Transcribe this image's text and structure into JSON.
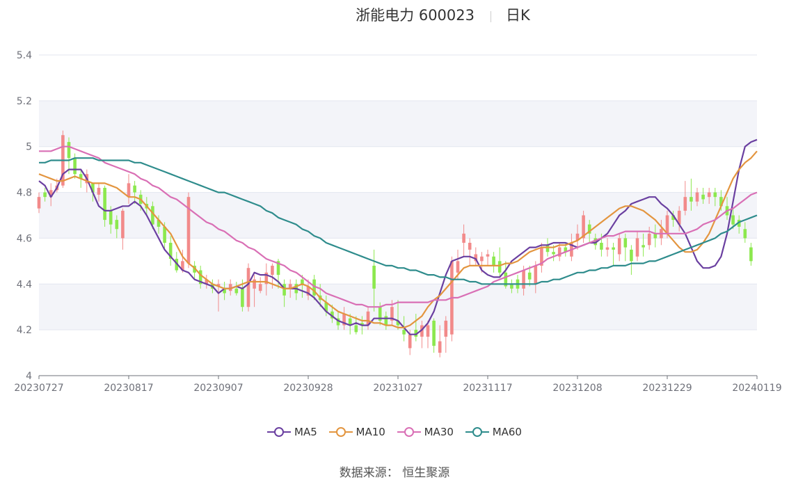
{
  "title": {
    "name": "浙能电力 600023",
    "period": "日K"
  },
  "source_text": "数据来源：  恒生聚源",
  "colors": {
    "up": "#f28a8a",
    "down": "#8ce84e",
    "ma5": "#6a3fa0",
    "ma10": "#e3953f",
    "ma30": "#d96fb5",
    "ma60": "#2e8c8c",
    "band": "#f3f4f9",
    "grid": "#e3e6ef",
    "axis": "#6e7079"
  },
  "chart_data": {
    "type": "candlestick",
    "title": "浙能电力 600023",
    "period": "日K",
    "ylim": [
      4,
      5.4
    ],
    "yticks": [
      4,
      4.2,
      4.4,
      4.6,
      4.8,
      5,
      5.2,
      5.4
    ],
    "ytick_labels": [
      "4",
      "4.2",
      "4.4",
      "4.6",
      "4.8",
      "5",
      "5.2",
      "5.4"
    ],
    "xtick_labels": [
      "20230727",
      "20230817",
      "20230907",
      "20230928",
      "20231027",
      "20231117",
      "20231208",
      "20231229",
      "20240119"
    ],
    "num_bars": 121,
    "xtick_indices": [
      0,
      15,
      30,
      45,
      60,
      75,
      90,
      105,
      120
    ],
    "legend": [
      {
        "name": "MA5",
        "color": "#6a3fa0"
      },
      {
        "name": "MA10",
        "color": "#e3953f"
      },
      {
        "name": "MA30",
        "color": "#d96fb5"
      },
      {
        "name": "MA60",
        "color": "#2e8c8c"
      }
    ],
    "candles": [
      [
        4.73,
        4.78,
        4.71,
        4.8
      ],
      [
        4.8,
        4.78,
        4.76,
        4.82
      ],
      [
        4.78,
        4.81,
        4.74,
        4.84
      ],
      [
        4.81,
        4.83,
        4.8,
        4.86
      ],
      [
        4.83,
        5.05,
        4.82,
        5.07
      ],
      [
        5.02,
        4.95,
        4.88,
        5.04
      ],
      [
        4.95,
        4.88,
        4.86,
        4.97
      ],
      [
        4.88,
        4.86,
        4.82,
        4.9
      ],
      [
        4.84,
        4.88,
        4.8,
        4.9
      ],
      [
        4.84,
        4.8,
        4.76,
        4.84
      ],
      [
        4.79,
        4.82,
        4.76,
        4.84
      ],
      [
        4.82,
        4.68,
        4.65,
        4.83
      ],
      [
        4.72,
        4.66,
        4.62,
        4.74
      ],
      [
        4.68,
        4.64,
        4.6,
        4.7
      ],
      [
        4.6,
        4.72,
        4.55,
        4.73
      ],
      [
        4.78,
        4.84,
        4.75,
        4.88
      ],
      [
        4.83,
        4.8,
        4.75,
        4.85
      ],
      [
        4.79,
        4.75,
        4.72,
        4.81
      ],
      [
        4.75,
        4.73,
        4.7,
        4.78
      ],
      [
        4.74,
        4.66,
        4.64,
        4.76
      ],
      [
        4.68,
        4.65,
        4.62,
        4.7
      ],
      [
        4.65,
        4.58,
        4.55,
        4.67
      ],
      [
        4.58,
        4.51,
        4.48,
        4.61
      ],
      [
        4.51,
        4.46,
        4.45,
        4.54
      ],
      [
        4.46,
        4.5,
        4.45,
        4.55
      ],
      [
        4.49,
        4.78,
        4.47,
        4.8
      ],
      [
        4.48,
        4.45,
        4.42,
        4.5
      ],
      [
        4.46,
        4.4,
        4.38,
        4.48
      ],
      [
        4.4,
        4.42,
        4.38,
        4.44
      ],
      [
        4.4,
        4.38,
        4.36,
        4.42
      ],
      [
        4.39,
        4.4,
        4.28,
        4.42
      ],
      [
        4.38,
        4.36,
        4.33,
        4.41
      ],
      [
        4.37,
        4.4,
        4.35,
        4.42
      ],
      [
        4.38,
        4.36,
        4.35,
        4.41
      ],
      [
        4.38,
        4.3,
        4.28,
        4.42
      ],
      [
        4.3,
        4.47,
        4.28,
        4.49
      ],
      [
        4.38,
        4.42,
        4.3,
        4.44
      ],
      [
        4.37,
        4.4,
        4.36,
        4.43
      ],
      [
        4.4,
        4.45,
        4.35,
        4.49
      ],
      [
        4.44,
        4.48,
        4.38,
        4.49
      ],
      [
        4.5,
        4.44,
        4.38,
        4.51
      ],
      [
        4.4,
        4.35,
        4.3,
        4.42
      ],
      [
        4.38,
        4.4,
        4.34,
        4.42
      ],
      [
        4.4,
        4.36,
        4.33,
        4.42
      ],
      [
        4.42,
        4.4,
        4.34,
        4.44
      ],
      [
        4.35,
        4.39,
        4.33,
        4.42
      ],
      [
        4.42,
        4.35,
        4.33,
        4.44
      ],
      [
        4.35,
        4.33,
        4.3,
        4.4
      ],
      [
        4.32,
        4.28,
        4.26,
        4.35
      ],
      [
        4.28,
        4.25,
        4.23,
        4.31
      ],
      [
        4.25,
        4.22,
        4.2,
        4.28
      ],
      [
        4.22,
        4.27,
        4.2,
        4.3
      ],
      [
        4.25,
        4.22,
        4.18,
        4.27
      ],
      [
        4.22,
        4.19,
        4.18,
        4.26
      ],
      [
        4.23,
        4.22,
        4.18,
        4.26
      ],
      [
        4.22,
        4.28,
        4.2,
        4.3
      ],
      [
        4.48,
        4.38,
        4.28,
        4.55
      ],
      [
        4.3,
        4.24,
        4.22,
        4.32
      ],
      [
        4.26,
        4.22,
        4.2,
        4.28
      ],
      [
        4.24,
        4.3,
        4.22,
        4.33
      ],
      [
        4.24,
        4.22,
        4.2,
        4.33
      ],
      [
        4.2,
        4.18,
        4.15,
        4.26
      ],
      [
        4.12,
        4.18,
        4.09,
        4.2
      ],
      [
        4.2,
        4.17,
        4.15,
        4.27
      ],
      [
        4.17,
        4.22,
        4.12,
        4.24
      ],
      [
        4.17,
        4.22,
        4.12,
        4.24
      ],
      [
        4.24,
        4.13,
        4.1,
        4.25
      ],
      [
        4.1,
        4.15,
        4.08,
        4.22
      ],
      [
        4.17,
        4.24,
        4.1,
        4.26
      ],
      [
        4.18,
        4.5,
        4.15,
        4.52
      ],
      [
        4.45,
        4.5,
        4.42,
        4.55
      ],
      [
        4.58,
        4.62,
        4.52,
        4.66
      ],
      [
        4.55,
        4.58,
        4.48,
        4.6
      ],
      [
        4.5,
        4.53,
        4.48,
        4.56
      ],
      [
        4.5,
        4.52,
        4.45,
        4.54
      ],
      [
        4.52,
        4.53,
        4.48,
        4.55
      ],
      [
        4.52,
        4.48,
        4.45,
        4.54
      ],
      [
        4.5,
        4.45,
        4.43,
        4.56
      ],
      [
        4.45,
        4.39,
        4.38,
        4.5
      ],
      [
        4.4,
        4.38,
        4.36,
        4.42
      ],
      [
        4.42,
        4.38,
        4.36,
        4.44
      ],
      [
        4.38,
        4.46,
        4.35,
        4.48
      ],
      [
        4.45,
        4.42,
        4.39,
        4.48
      ],
      [
        4.4,
        4.48,
        4.36,
        4.5
      ],
      [
        4.48,
        4.56,
        4.45,
        4.58
      ],
      [
        4.57,
        4.54,
        4.52,
        4.6
      ],
      [
        4.54,
        4.53,
        4.5,
        4.57
      ],
      [
        4.52,
        4.56,
        4.5,
        4.58
      ],
      [
        4.56,
        4.54,
        4.52,
        4.58
      ],
      [
        4.52,
        4.58,
        4.5,
        4.62
      ],
      [
        4.59,
        4.62,
        4.55,
        4.66
      ],
      [
        4.6,
        4.7,
        4.58,
        4.72
      ],
      [
        4.66,
        4.62,
        4.58,
        4.68
      ],
      [
        4.6,
        4.57,
        4.55,
        4.62
      ],
      [
        4.58,
        4.55,
        4.52,
        4.62
      ],
      [
        4.55,
        4.56,
        4.52,
        4.6
      ],
      [
        4.56,
        4.55,
        4.48,
        4.58
      ],
      [
        4.53,
        4.6,
        4.5,
        4.62
      ],
      [
        4.6,
        4.56,
        4.5,
        4.62
      ],
      [
        4.55,
        4.5,
        4.44,
        4.57
      ],
      [
        4.52,
        4.6,
        4.5,
        4.63
      ],
      [
        4.57,
        4.56,
        4.52,
        4.62
      ],
      [
        4.57,
        4.62,
        4.55,
        4.65
      ],
      [
        4.62,
        4.6,
        4.56,
        4.66
      ],
      [
        4.6,
        4.64,
        4.57,
        4.68
      ],
      [
        4.62,
        4.7,
        4.6,
        4.72
      ],
      [
        4.7,
        4.68,
        4.65,
        4.72
      ],
      [
        4.66,
        4.72,
        4.63,
        4.74
      ],
      [
        4.72,
        4.78,
        4.7,
        4.85
      ],
      [
        4.78,
        4.76,
        4.72,
        4.86
      ],
      [
        4.76,
        4.8,
        4.74,
        4.82
      ],
      [
        4.79,
        4.77,
        4.75,
        4.82
      ],
      [
        4.78,
        4.8,
        4.75,
        4.82
      ],
      [
        4.8,
        4.78,
        4.74,
        4.82
      ],
      [
        4.78,
        4.74,
        4.72,
        4.81
      ],
      [
        4.74,
        4.7,
        4.68,
        4.78
      ],
      [
        4.7,
        4.66,
        4.64,
        4.73
      ],
      [
        4.68,
        4.65,
        4.62,
        4.7
      ],
      [
        4.64,
        4.6,
        4.58,
        4.67
      ],
      [
        4.56,
        4.5,
        4.48,
        4.58
      ]
    ],
    "ma5": [
      4.85,
      4.83,
      4.78,
      4.82,
      4.88,
      4.9,
      4.9,
      4.9,
      4.86,
      4.8,
      4.74,
      4.72,
      4.72,
      4.73,
      4.74,
      4.74,
      4.76,
      4.74,
      4.7,
      4.65,
      4.6,
      4.55,
      4.52,
      4.49,
      4.46,
      4.45,
      4.42,
      4.41,
      4.4,
      4.39,
      4.36,
      4.38,
      4.38,
      4.39,
      4.38,
      4.4,
      4.45,
      4.44,
      4.44,
      4.43,
      4.41,
      4.38,
      4.38,
      4.38,
      4.37,
      4.36,
      4.34,
      4.31,
      4.28,
      4.26,
      4.24,
      4.23,
      4.22,
      4.23,
      4.22,
      4.22,
      4.25,
      4.25,
      4.25,
      4.25,
      4.24,
      4.21,
      4.18,
      4.18,
      4.2,
      4.23,
      4.28,
      4.36,
      4.44,
      4.5,
      4.51,
      4.52,
      4.52,
      4.51,
      4.46,
      4.44,
      4.43,
      4.43,
      4.46,
      4.5,
      4.52,
      4.54,
      4.56,
      4.56,
      4.57,
      4.57,
      4.58,
      4.58,
      4.58,
      4.57,
      4.56,
      4.57,
      4.58,
      4.58,
      4.6,
      4.62,
      4.66,
      4.7,
      4.72,
      4.75,
      4.76,
      4.77,
      4.78,
      4.78,
      4.75,
      4.73,
      4.7,
      4.66,
      4.62,
      4.56,
      4.5,
      4.47,
      4.47,
      4.48,
      4.52,
      4.62,
      4.76,
      4.9,
      5.0,
      5.02,
      5.03
    ],
    "ma10": [
      4.88,
      4.87,
      4.86,
      4.85,
      4.85,
      4.86,
      4.87,
      4.86,
      4.85,
      4.84,
      4.84,
      4.84,
      4.83,
      4.82,
      4.8,
      4.78,
      4.78,
      4.77,
      4.74,
      4.71,
      4.68,
      4.65,
      4.62,
      4.57,
      4.52,
      4.49,
      4.47,
      4.44,
      4.42,
      4.4,
      4.39,
      4.38,
      4.38,
      4.39,
      4.4,
      4.41,
      4.41,
      4.41,
      4.41,
      4.4,
      4.39,
      4.38,
      4.38,
      4.39,
      4.4,
      4.39,
      4.37,
      4.34,
      4.32,
      4.3,
      4.28,
      4.27,
      4.26,
      4.25,
      4.24,
      4.24,
      4.23,
      4.23,
      4.22,
      4.22,
      4.21,
      4.21,
      4.22,
      4.24,
      4.26,
      4.3,
      4.33,
      4.35,
      4.38,
      4.41,
      4.44,
      4.47,
      4.48,
      4.48,
      4.48,
      4.48,
      4.48,
      4.48,
      4.49,
      4.49,
      4.5,
      4.52,
      4.54,
      4.55,
      4.56,
      4.56,
      4.56,
      4.57,
      4.57,
      4.58,
      4.59,
      4.61,
      4.63,
      4.65,
      4.67,
      4.69,
      4.71,
      4.73,
      4.74,
      4.74,
      4.73,
      4.72,
      4.7,
      4.68,
      4.65,
      4.62,
      4.59,
      4.56,
      4.54,
      4.54,
      4.55,
      4.58,
      4.62,
      4.68,
      4.74,
      4.8,
      4.86,
      4.9,
      4.93,
      4.95,
      4.98
    ],
    "ma30": [
      4.98,
      4.98,
      4.98,
      4.99,
      5.0,
      5.0,
      4.99,
      4.98,
      4.97,
      4.96,
      4.95,
      4.93,
      4.92,
      4.91,
      4.9,
      4.89,
      4.88,
      4.86,
      4.85,
      4.83,
      4.82,
      4.8,
      4.78,
      4.77,
      4.75,
      4.73,
      4.71,
      4.69,
      4.67,
      4.66,
      4.64,
      4.63,
      4.61,
      4.59,
      4.58,
      4.56,
      4.55,
      4.53,
      4.51,
      4.5,
      4.49,
      4.48,
      4.46,
      4.45,
      4.43,
      4.41,
      4.39,
      4.38,
      4.36,
      4.35,
      4.34,
      4.33,
      4.32,
      4.31,
      4.31,
      4.3,
      4.3,
      4.3,
      4.31,
      4.31,
      4.32,
      4.32,
      4.32,
      4.32,
      4.32,
      4.32,
      4.33,
      4.33,
      4.33,
      4.34,
      4.34,
      4.35,
      4.36,
      4.37,
      4.38,
      4.39,
      4.41,
      4.42,
      4.43,
      4.44,
      4.45,
      4.46,
      4.47,
      4.48,
      4.49,
      4.51,
      4.52,
      4.53,
      4.54,
      4.55,
      4.56,
      4.57,
      4.58,
      4.59,
      4.6,
      4.61,
      4.61,
      4.62,
      4.63,
      4.63,
      4.63,
      4.63,
      4.63,
      4.62,
      4.62,
      4.62,
      4.62,
      4.62,
      4.62,
      4.63,
      4.64,
      4.66,
      4.67,
      4.68,
      4.7,
      4.72,
      4.73,
      4.75,
      4.77,
      4.79,
      4.8
    ],
    "ma60": [
      4.93,
      4.93,
      4.94,
      4.94,
      4.94,
      4.94,
      4.95,
      4.95,
      4.95,
      4.95,
      4.94,
      4.94,
      4.94,
      4.94,
      4.94,
      4.94,
      4.93,
      4.93,
      4.92,
      4.91,
      4.9,
      4.89,
      4.88,
      4.87,
      4.86,
      4.85,
      4.84,
      4.83,
      4.82,
      4.81,
      4.8,
      4.8,
      4.79,
      4.78,
      4.77,
      4.76,
      4.75,
      4.74,
      4.72,
      4.71,
      4.69,
      4.68,
      4.67,
      4.66,
      4.64,
      4.63,
      4.61,
      4.6,
      4.58,
      4.57,
      4.56,
      4.55,
      4.54,
      4.53,
      4.52,
      4.51,
      4.5,
      4.49,
      4.48,
      4.48,
      4.47,
      4.47,
      4.46,
      4.46,
      4.45,
      4.44,
      4.44,
      4.43,
      4.43,
      4.42,
      4.42,
      4.42,
      4.41,
      4.41,
      4.4,
      4.4,
      4.4,
      4.4,
      4.4,
      4.4,
      4.4,
      4.4,
      4.4,
      4.4,
      4.41,
      4.41,
      4.42,
      4.42,
      4.43,
      4.44,
      4.45,
      4.45,
      4.46,
      4.46,
      4.47,
      4.47,
      4.48,
      4.48,
      4.48,
      4.49,
      4.49,
      4.49,
      4.5,
      4.5,
      4.51,
      4.52,
      4.53,
      4.54,
      4.55,
      4.56,
      4.57,
      4.58,
      4.59,
      4.6,
      4.62,
      4.63,
      4.65,
      4.67,
      4.68,
      4.69,
      4.7
    ]
  }
}
